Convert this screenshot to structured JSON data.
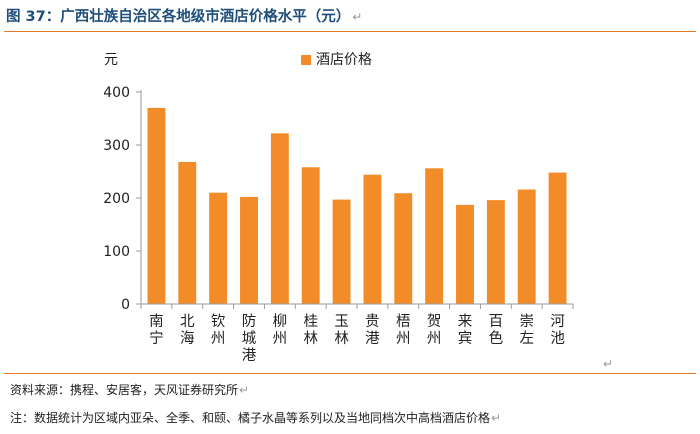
{
  "figure": {
    "title": "图 37：广西壮族自治区各地级市酒店价格水平（元）",
    "return_mark": "↵"
  },
  "chart_data": {
    "type": "bar",
    "title": "",
    "ylabel": "元",
    "xlabel": "",
    "ylim": [
      0,
      400
    ],
    "yticks": [
      0,
      100,
      200,
      300,
      400
    ],
    "legend": "top",
    "categories": [
      "南宁",
      "北海",
      "钦州",
      "防城港",
      "柳州",
      "桂林",
      "玉林",
      "贵港",
      "梧州",
      "贺州",
      "来宾",
      "百色",
      "崇左",
      "河池"
    ],
    "series": [
      {
        "name": "酒店价格",
        "color": "#f28c28",
        "values": [
          370,
          268,
          210,
          202,
          322,
          258,
          197,
          244,
          209,
          256,
          187,
          196,
          216,
          248
        ]
      }
    ]
  },
  "footer": {
    "source": "资料来源：携程、安居客，天风证券研究所",
    "note": "注：数据统计为区域内亚朵、全季、和颐、橘子水晶等系列以及当地同档次中高档酒店价格"
  }
}
